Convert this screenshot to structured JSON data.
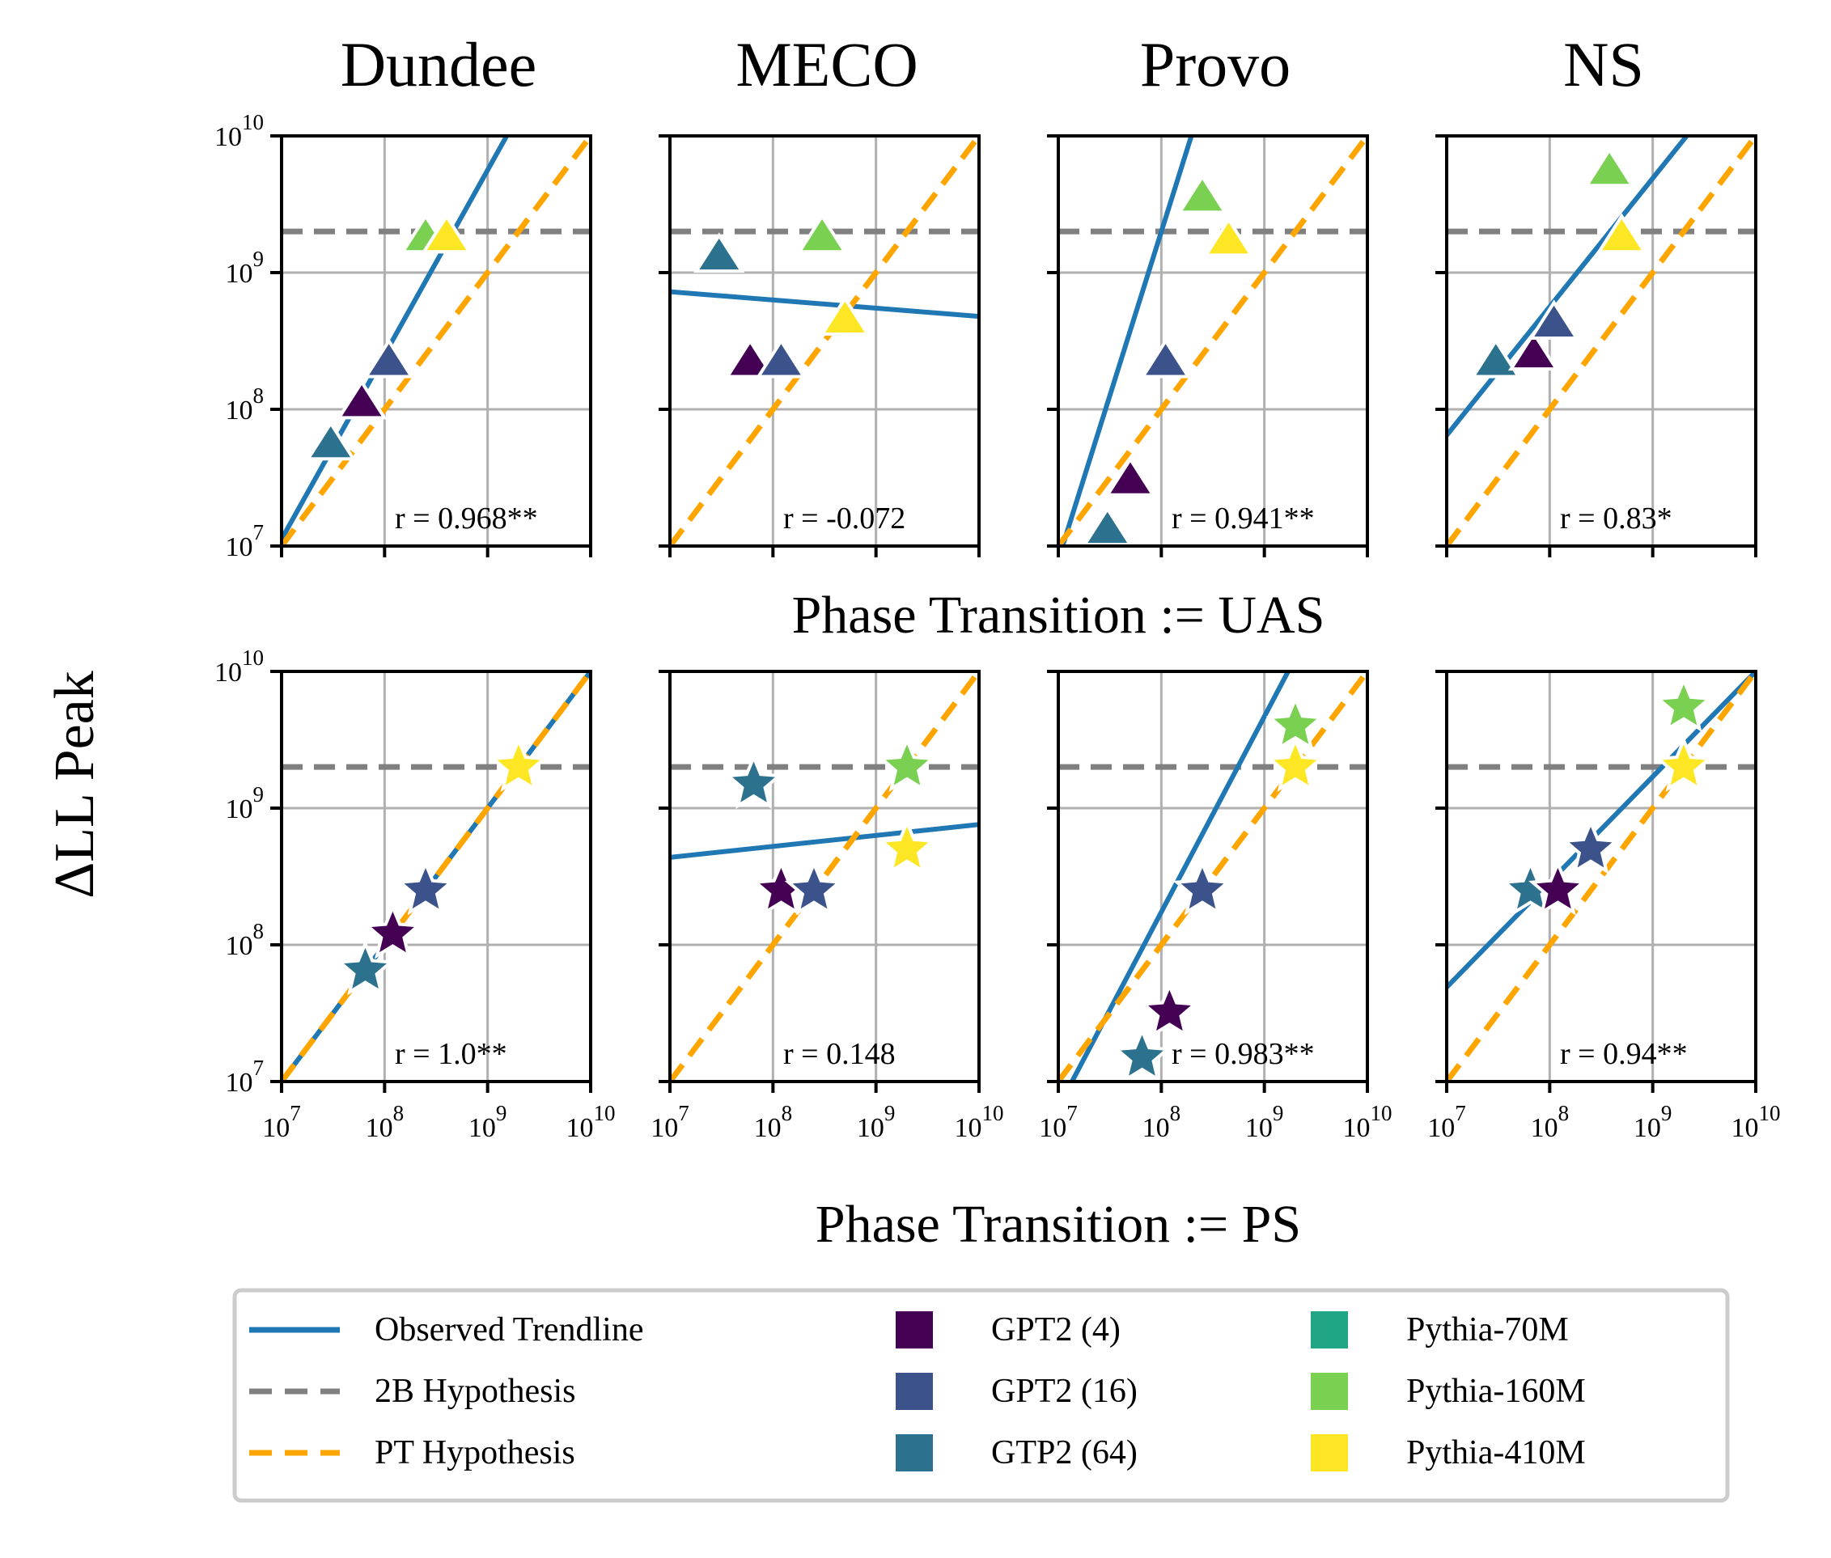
{
  "chart_data": {
    "type": "scatter",
    "scale": "log-log",
    "columns": [
      "Dundee",
      "MECO",
      "Provo",
      "NS"
    ],
    "row_labels": [
      "Phase Transition := UAS",
      "Phase Transition := PS"
    ],
    "ylabel": "ΔLL Peak",
    "xlim": [
      10000000,
      10000000000
    ],
    "ylim": [
      10000000,
      10000000000
    ],
    "tick_base": "10",
    "tick_exponents": [
      "7",
      "8",
      "9",
      "10"
    ],
    "hypothesis_2b": 2000000000,
    "grid": true,
    "legend_position": "bottom",
    "legend": {
      "lines": [
        {
          "label": "Observed Trendline",
          "color": "#1f77b4",
          "style": "solid"
        },
        {
          "label": "2B Hypothesis",
          "color": "#808080",
          "style": "dashed"
        },
        {
          "label": "PT Hypothesis",
          "color": "#ffa500",
          "style": "dashed"
        }
      ],
      "models": [
        {
          "label": "GPT2 (4)",
          "color": "#440154"
        },
        {
          "label": "GPT2 (16)",
          "color": "#3b528b"
        },
        {
          "label": "GTP2 (64)",
          "color": "#2c728e"
        },
        {
          "label": "Pythia-70M",
          "color": "#21a685"
        },
        {
          "label": "Pythia-160M",
          "color": "#7ad151"
        },
        {
          "label": "Pythia-410M",
          "color": "#fde725"
        }
      ]
    },
    "panels": [
      {
        "row": 0,
        "col": 0,
        "marker": "triangle",
        "r_text": "r = 0.968**",
        "trend": {
          "slope": 1.35,
          "intercept": -2.4
        },
        "points": [
          {
            "model": "GTP2 (64)",
            "x": 30000000,
            "y": 55000000
          },
          {
            "model": "GPT2 (4)",
            "x": 60000000,
            "y": 110000000
          },
          {
            "model": "GPT2 (16)",
            "x": 110000000,
            "y": 220000000
          },
          {
            "model": "Pythia-160M",
            "x": 250000000,
            "y": 1800000000
          },
          {
            "model": "Pythia-410M",
            "x": 400000000,
            "y": 1800000000
          }
        ]
      },
      {
        "row": 0,
        "col": 1,
        "marker": "triangle",
        "r_text": "r = -0.072",
        "trend": {
          "slope": -0.06,
          "intercept": 9.28
        },
        "points": [
          {
            "model": "GTP2 (64)",
            "x": 30000000,
            "y": 1300000000
          },
          {
            "model": "GPT2 (4)",
            "x": 60000000,
            "y": 220000000
          },
          {
            "model": "GPT2 (16)",
            "x": 120000000,
            "y": 220000000
          },
          {
            "model": "Pythia-160M",
            "x": 300000000,
            "y": 1800000000
          },
          {
            "model": "Pythia-410M",
            "x": 500000000,
            "y": 450000000
          }
        ]
      },
      {
        "row": 0,
        "col": 2,
        "marker": "triangle",
        "r_text": "r = 0.941**",
        "trend": {
          "slope": 2.4,
          "intercept": -9.9
        },
        "points": [
          {
            "model": "GTP2 (64)",
            "x": 30000000,
            "y": 13000000
          },
          {
            "model": "GPT2 (4)",
            "x": 50000000,
            "y": 30000000
          },
          {
            "model": "GPT2 (16)",
            "x": 110000000,
            "y": 220000000
          },
          {
            "model": "Pythia-160M",
            "x": 250000000,
            "y": 3500000000
          },
          {
            "model": "Pythia-410M",
            "x": 450000000,
            "y": 1700000000
          }
        ]
      },
      {
        "row": 0,
        "col": 3,
        "marker": "triangle",
        "r_text": "r = 0.83*",
        "trend": {
          "slope": 0.94,
          "intercept": 1.23
        },
        "points": [
          {
            "model": "GTP2 (64)",
            "x": 30000000,
            "y": 220000000
          },
          {
            "model": "GPT2 (4)",
            "x": 70000000,
            "y": 250000000
          },
          {
            "model": "GPT2 (16)",
            "x": 110000000,
            "y": 420000000
          },
          {
            "model": "Pythia-160M",
            "x": 380000000,
            "y": 5500000000
          },
          {
            "model": "Pythia-410M",
            "x": 500000000,
            "y": 1800000000
          }
        ]
      },
      {
        "row": 1,
        "col": 0,
        "marker": "star",
        "r_text": "r = 1.0**",
        "trend": {
          "slope": 1.0,
          "intercept": 0.0
        },
        "points": [
          {
            "model": "GTP2 (64)",
            "x": 65000000,
            "y": 65000000
          },
          {
            "model": "GPT2 (4)",
            "x": 120000000,
            "y": 120000000
          },
          {
            "model": "GPT2 (16)",
            "x": 250000000,
            "y": 250000000
          },
          {
            "model": "Pythia-410M",
            "x": 2000000000,
            "y": 2000000000
          }
        ]
      },
      {
        "row": 1,
        "col": 1,
        "marker": "star",
        "r_text": "r = 0.148",
        "trend": {
          "slope": 0.08,
          "intercept": 8.08
        },
        "points": [
          {
            "model": "GTP2 (64)",
            "x": 65000000,
            "y": 1500000000
          },
          {
            "model": "GPT2 (4)",
            "x": 120000000,
            "y": 250000000
          },
          {
            "model": "GPT2 (16)",
            "x": 250000000,
            "y": 250000000
          },
          {
            "model": "Pythia-160M",
            "x": 2000000000,
            "y": 2000000000
          },
          {
            "model": "Pythia-410M",
            "x": 2000000000,
            "y": 500000000
          }
        ]
      },
      {
        "row": 1,
        "col": 2,
        "marker": "star",
        "r_text": "r = 0.983**",
        "trend": {
          "slope": 1.43,
          "intercept": -3.2
        },
        "points": [
          {
            "model": "GTP2 (64)",
            "x": 65000000,
            "y": 15000000
          },
          {
            "model": "GPT2 (4)",
            "x": 120000000,
            "y": 32000000
          },
          {
            "model": "GPT2 (16)",
            "x": 250000000,
            "y": 250000000
          },
          {
            "model": "Pythia-160M",
            "x": 2000000000,
            "y": 4000000000
          },
          {
            "model": "Pythia-410M",
            "x": 2000000000,
            "y": 2000000000
          }
        ]
      },
      {
        "row": 1,
        "col": 3,
        "marker": "star",
        "r_text": "r = 0.94**",
        "trend": {
          "slope": 0.77,
          "intercept": 2.3
        },
        "points": [
          {
            "model": "GTP2 (64)",
            "x": 65000000,
            "y": 250000000
          },
          {
            "model": "GPT2 (4)",
            "x": 120000000,
            "y": 250000000
          },
          {
            "model": "GPT2 (16)",
            "x": 250000000,
            "y": 500000000
          },
          {
            "model": "Pythia-160M",
            "x": 2000000000,
            "y": 5500000000
          },
          {
            "model": "Pythia-410M",
            "x": 2000000000,
            "y": 2000000000
          }
        ]
      }
    ]
  }
}
